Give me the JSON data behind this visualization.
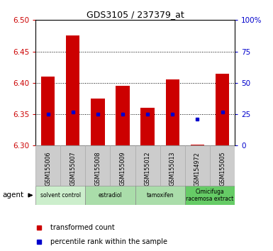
{
  "title": "GDS3105 / 237379_at",
  "samples": [
    "GSM155006",
    "GSM155007",
    "GSM155008",
    "GSM155009",
    "GSM155012",
    "GSM155013",
    "GSM154972",
    "GSM155005"
  ],
  "bar_values": [
    6.41,
    6.475,
    6.375,
    6.395,
    6.36,
    6.405,
    6.302,
    6.415
  ],
  "bar_bottom": 6.3,
  "percentile_values": [
    25,
    27,
    25,
    25,
    25,
    25,
    21,
    27
  ],
  "percentile_scale_min": 0,
  "percentile_scale_max": 100,
  "ylim": [
    6.3,
    6.5
  ],
  "yticks": [
    6.3,
    6.35,
    6.4,
    6.45,
    6.5
  ],
  "right_yticks": [
    0,
    25,
    50,
    75,
    100
  ],
  "right_yticklabels": [
    "0",
    "25",
    "50",
    "75",
    "100%"
  ],
  "bar_color": "#cc0000",
  "percentile_color": "#0000cc",
  "bar_width": 0.55,
  "agent_groups": [
    {
      "label": "solvent control",
      "start": 0,
      "end": 2,
      "color": "#cceecc"
    },
    {
      "label": "estradiol",
      "start": 2,
      "end": 4,
      "color": "#aaddaa"
    },
    {
      "label": "tamoxifen",
      "start": 4,
      "end": 6,
      "color": "#aaddaa"
    },
    {
      "label": "Cimicifuga\nracemosa extract",
      "start": 6,
      "end": 8,
      "color": "#66cc66"
    }
  ],
  "background_color": "#ffffff",
  "plot_bg_color": "#ffffff",
  "tick_label_color_left": "#cc0000",
  "tick_label_color_right": "#0000cc",
  "sample_box_color": "#cccccc",
  "sample_box_edge": "#aaaaaa"
}
